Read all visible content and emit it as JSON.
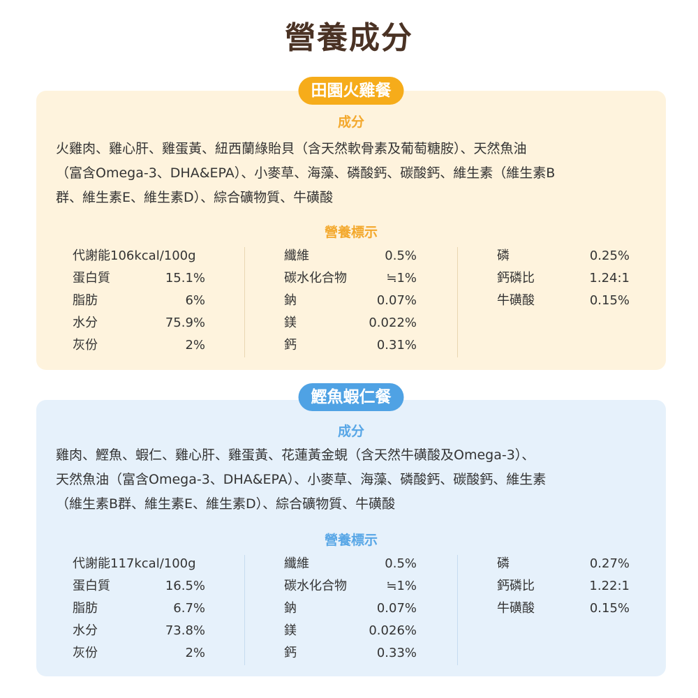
{
  "title": "營養成分",
  "cards": [
    {
      "name": "田園火雞餐",
      "ingredients_heading": "成分",
      "ingredients_lines": [
        "火雞肉、雞心肝、雞蛋黃、紐西蘭綠貽貝（含天然軟骨素及葡萄糖胺）、天然魚油",
        "（富含Omega-3、DHA&EPA）、小麥草、海藻、磷酸鈣、碳酸鈣、維生素（維生素B",
        "群、維生素E、維生素D）、綜合礦物質、牛磺酸"
      ],
      "nutrition_heading": "營養標示",
      "col1": [
        {
          "label": "代謝能106kcal/100g",
          "value": ""
        },
        {
          "label": "蛋白質",
          "value": "15.1%"
        },
        {
          "label": "脂肪",
          "value": "6%"
        },
        {
          "label": "水分",
          "value": "75.9%"
        },
        {
          "label": "灰份",
          "value": "2%"
        }
      ],
      "col2": [
        {
          "label": "纖維",
          "value": "0.5%"
        },
        {
          "label": "碳水化合物",
          "value": "≒1%"
        },
        {
          "label": "鈉",
          "value": "0.07%"
        },
        {
          "label": "鎂",
          "value": "0.022%"
        },
        {
          "label": "鈣",
          "value": "0.31%"
        }
      ],
      "col3": [
        {
          "label": "磷",
          "value": "0.25%"
        },
        {
          "label": "鈣磷比",
          "value": "1.24:1"
        },
        {
          "label": "牛磺酸",
          "value": "0.15%"
        }
      ]
    },
    {
      "name": "鰹魚蝦仁餐",
      "ingredients_heading": "成分",
      "ingredients_lines": [
        "雞肉、鰹魚、蝦仁、雞心肝、雞蛋黃、花蓮黃金蜆（含天然牛磺酸及Omega-3）、",
        "天然魚油（富含Omega-3、DHA&EPA）、小麥草、海藻、磷酸鈣、碳酸鈣、維生素",
        "（維生素B群、維生素E、維生素D）、綜合礦物質、牛磺酸"
      ],
      "nutrition_heading": "營養標示",
      "col1": [
        {
          "label": "代謝能117kcal/100g",
          "value": ""
        },
        {
          "label": "蛋白質",
          "value": "16.5%"
        },
        {
          "label": "脂肪",
          "value": "6.7%"
        },
        {
          "label": "水分",
          "value": "73.8%"
        },
        {
          "label": "灰份",
          "value": "2%"
        }
      ],
      "col2": [
        {
          "label": "纖維",
          "value": "0.5%"
        },
        {
          "label": "碳水化合物",
          "value": "≒1%"
        },
        {
          "label": "鈉",
          "value": "0.07%"
        },
        {
          "label": "鎂",
          "value": "0.026%"
        },
        {
          "label": "鈣",
          "value": "0.33%"
        }
      ],
      "col3": [
        {
          "label": "磷",
          "value": "0.27%"
        },
        {
          "label": "鈣磷比",
          "value": "1.22:1"
        },
        {
          "label": "牛磺酸",
          "value": "0.15%"
        }
      ]
    }
  ],
  "colors": {
    "title": "#4a3224",
    "orange_pill": "#f6ac1a",
    "orange_card": "#fef3dd",
    "blue_pill": "#4fa2e4",
    "blue_card": "#e6f1fb"
  }
}
